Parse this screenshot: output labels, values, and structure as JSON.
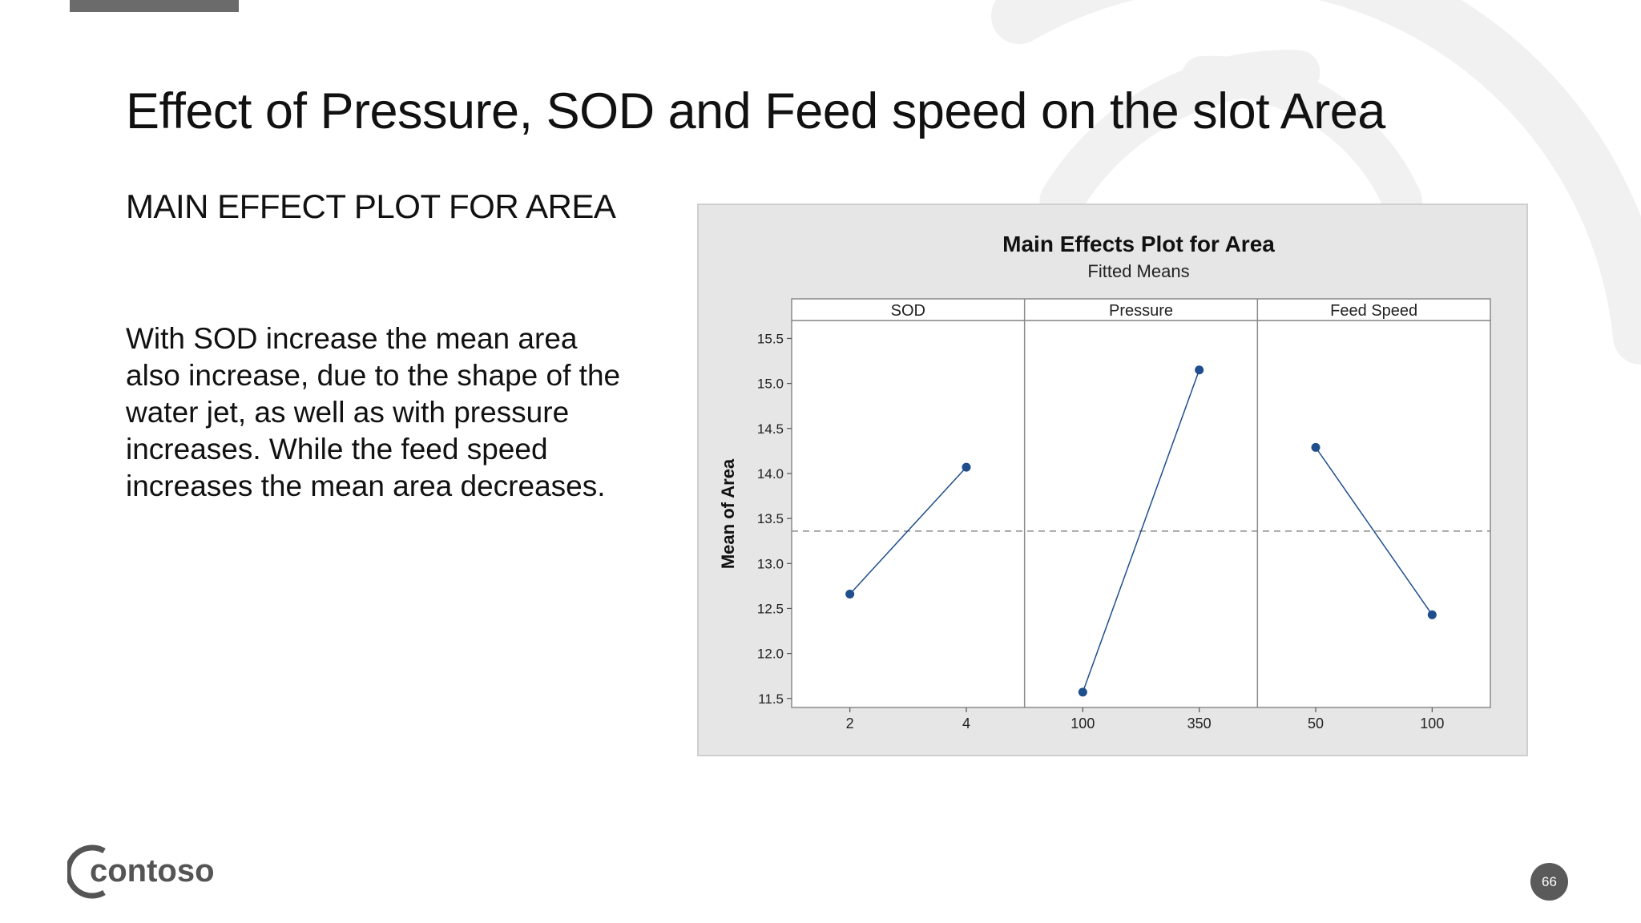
{
  "slide": {
    "title": "Effect of Pressure, SOD and Feed speed on the slot Area",
    "subtitle": "MAIN EFFECT PLOT FOR AREA",
    "body": "With SOD increase the mean area also increase, due to the shape of the water jet, as well as with pressure increases. While the feed speed increases the mean area decreases.",
    "page_number": "66",
    "logo_text": "contoso"
  },
  "colors": {
    "accent_bar": "#6b6b6b",
    "series": "#1f4e8c",
    "chart_bg": "#e6e6e6",
    "reference_line": "#8a8a8a"
  },
  "chart_data": {
    "type": "line",
    "title": "Main Effects Plot for Area",
    "subtitle": "Fitted Means",
    "ylabel": "Mean of Area",
    "ylim": [
      11.4,
      15.7
    ],
    "yticks": [
      11.5,
      12.0,
      12.5,
      13.0,
      13.5,
      14.0,
      14.5,
      15.0,
      15.5
    ],
    "reference_line": 13.36,
    "panels": [
      {
        "name": "SOD",
        "x": [
          "2",
          "4"
        ],
        "values": [
          12.66,
          14.07
        ]
      },
      {
        "name": "Pressure",
        "x": [
          "100",
          "350"
        ],
        "values": [
          11.57,
          15.15
        ]
      },
      {
        "name": "Feed Speed",
        "x": [
          "50",
          "100"
        ],
        "values": [
          14.29,
          12.43
        ]
      }
    ],
    "grid": false,
    "legend": "none"
  }
}
